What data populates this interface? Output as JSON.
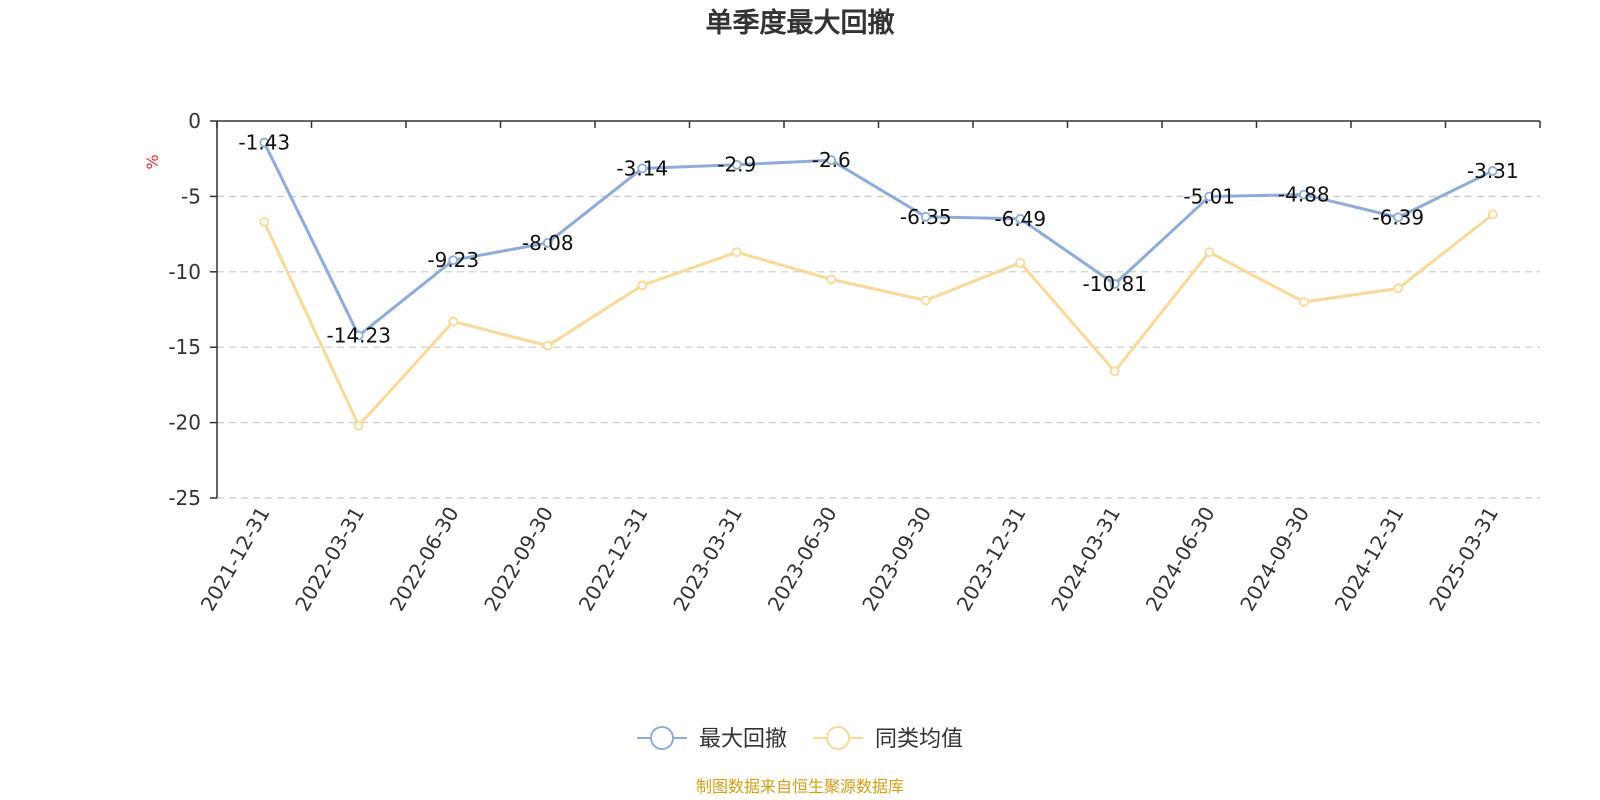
{
  "chart_data": {
    "type": "line",
    "title": "单季度最大回撤",
    "ylabel": "%",
    "xlabel": "",
    "categories": [
      "2021-12-31",
      "2022-03-31",
      "2022-06-30",
      "2022-09-30",
      "2022-12-31",
      "2023-03-31",
      "2023-06-30",
      "2023-09-30",
      "2023-12-31",
      "2024-03-31",
      "2024-06-30",
      "2024-09-30",
      "2024-12-31",
      "2025-03-31"
    ],
    "ylim": [
      -25,
      0
    ],
    "yticks": [
      "0",
      "-5",
      "-10",
      "-15",
      "-20",
      "-25"
    ],
    "grid": true,
    "legend_position": "bottom",
    "series": [
      {
        "name": "最大回撤",
        "color": "#8facd8",
        "values": [
          -1.43,
          -14.23,
          -9.23,
          -8.08,
          -3.14,
          -2.9,
          -2.6,
          -6.35,
          -6.49,
          -10.81,
          -5.01,
          -4.88,
          -6.39,
          -3.31
        ],
        "labels": [
          "-1.43",
          "-14.23",
          "-9.23",
          "-8.08",
          "-3.14",
          "-2.9",
          "-2.6",
          "-6.35",
          "-6.49",
          "-10.81",
          "-5.01",
          "-4.88",
          "-6.39",
          "-3.31"
        ]
      },
      {
        "name": "同类均值",
        "color": "#f8d99a",
        "values": [
          -6.7,
          -20.2,
          -13.3,
          -14.9,
          -10.9,
          -8.7,
          -10.5,
          -11.9,
          -9.4,
          -16.6,
          -8.7,
          -12.0,
          -11.1,
          -6.2
        ]
      }
    ]
  },
  "colors": {
    "unit_label": "#e03030",
    "source": "#d4a017",
    "axis": "#333333",
    "grid": "#cccccc"
  },
  "source": "制图数据来自恒生聚源数据库"
}
